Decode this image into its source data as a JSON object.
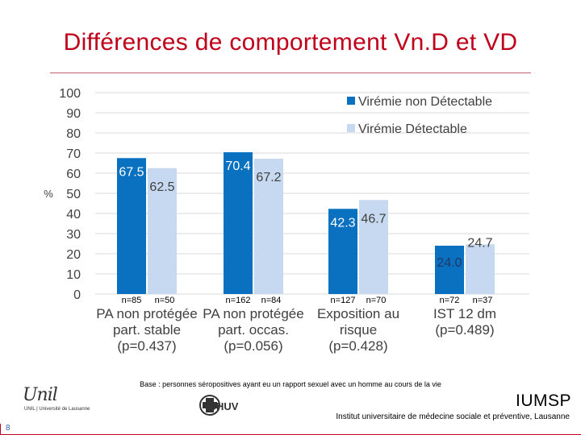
{
  "slide": {
    "title": "Différences de comportement Vn.D et VD",
    "base_note": "Base : personnes séropositives ayant eu un rapport sexuel avec un homme au cours de la vie",
    "logos": {
      "unil_mark": "Unil",
      "unil_text": "UNIL | Université de Lausanne",
      "chuv_text": "CHUV",
      "iumsp": "IUMSP",
      "institute": "Institut universitaire de médecine sociale et préventive, Lausanne"
    },
    "page_number": "8"
  },
  "colors": {
    "title": "#c0001a",
    "series_nd": "#0a70c0",
    "series_d": "#c6d9f0",
    "label_nd_light": "#ffffff",
    "label_nd_dark": "#1f3864",
    "label_d": "#404040",
    "grid": "#d9d9d9"
  },
  "chart_data": {
    "type": "bar",
    "title": "",
    "ylabel": "%",
    "xlabel": "",
    "ylim": [
      0,
      100
    ],
    "yticks": [
      0,
      10,
      20,
      30,
      40,
      50,
      60,
      70,
      80,
      90,
      100
    ],
    "grid": true,
    "legend_position": "top-right",
    "categories": [
      {
        "label": [
          "PA non protégée",
          "part. stable",
          "(p=0.437)"
        ],
        "n": [
          "n=85",
          "n=50"
        ]
      },
      {
        "label": [
          "PA non protégée",
          "part. occas.",
          "(p=0.056)"
        ],
        "n": [
          "n=162",
          "n=84"
        ]
      },
      {
        "label": [
          "Exposition au",
          "risque",
          "(p=0.428)"
        ],
        "n": [
          "n=127",
          "n=70"
        ]
      },
      {
        "label": [
          "IST 12 dm",
          "(p=0.489)"
        ],
        "n": [
          "n=72",
          "n=37"
        ]
      }
    ],
    "series": [
      {
        "name": "Virémie non Détectable",
        "values": [
          67.5,
          70.4,
          42.3,
          24.0
        ],
        "labels": [
          "67.5",
          "70.4",
          "42.3",
          "24.0"
        ]
      },
      {
        "name": "Virémie Détectable",
        "values": [
          62.5,
          67.2,
          46.7,
          24.7
        ],
        "labels": [
          "62.5",
          "67.2",
          "46.7",
          "24.7"
        ]
      }
    ]
  }
}
